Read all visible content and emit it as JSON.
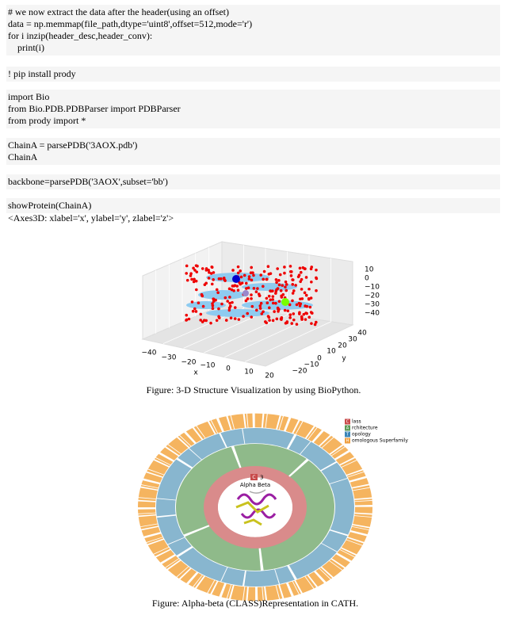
{
  "code_blocks": [
    {
      "lines": [
        "# we now extract the data after the header(using an offset)",
        "data = np.memmap(file_path,dtype='uint8',offset=512,mode='r')",
        "for i inzip(header_desc,header_conv):",
        "    print(i)"
      ]
    },
    {
      "lines": [
        "! pip install prody"
      ]
    },
    {
      "lines": [
        "import Bio",
        "from Bio.PDB.PDBParser import PDBParser",
        "from prody import *"
      ]
    },
    {
      "lines": [
        "ChainA = parsePDB('3AOX.pdb')",
        "ChainA"
      ]
    },
    {
      "lines": [
        "backbone=parsePDB('3AOX',subset='bb')"
      ]
    },
    {
      "lines": [
        "showProtein(ChainA)"
      ]
    }
  ],
  "output": "<Axes3D: xlabel='x', ylabel='y', zlabel='z'>",
  "figure1": {
    "xticks": [
      "−40",
      "−30",
      "−20",
      "−10",
      "0",
      "10",
      "20"
    ],
    "yticks": [
      "40",
      "30",
      "20",
      "10",
      "0",
      "−10",
      "−20"
    ],
    "zticks": [
      "10",
      "0",
      "−10",
      "−20",
      "−30",
      "−40"
    ],
    "xlabel": "x",
    "ylabel": "y",
    "caption": "Figure: 3-D Structure Visualization by using BioPython."
  },
  "figure2": {
    "legend": [
      {
        "letter": "C",
        "text": "lass"
      },
      {
        "letter": "A",
        "text": "rchitecture"
      },
      {
        "letter": "T",
        "text": "opology"
      },
      {
        "letter": "H",
        "text": "omologous Superfamily"
      }
    ],
    "center_badge": "C",
    "center_number": "3",
    "center_label": "Alpha Beta",
    "caption": "Figure: Alpha-beta (CLASS)Representation in CATH."
  }
}
